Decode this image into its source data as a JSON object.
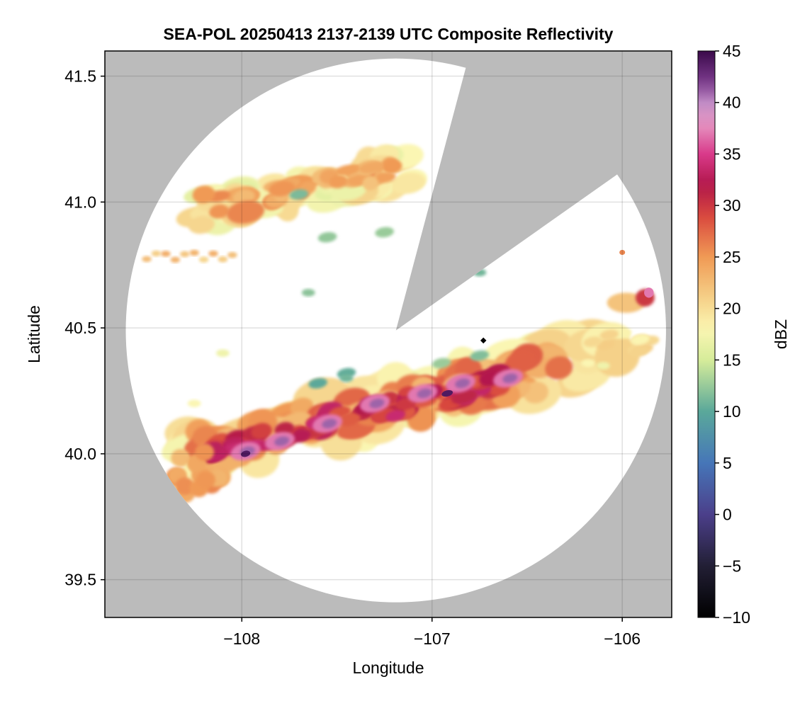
{
  "chart_data": {
    "type": "heatmap",
    "title": "SEA-POL 20250413 2137-2139 UTC Composite Reflectivity",
    "xlabel": "Longitude",
    "ylabel": "Latitude",
    "xlim": [
      -108.72,
      -105.74
    ],
    "ylim": [
      39.35,
      41.6
    ],
    "xticks": [
      -108,
      -107,
      -106
    ],
    "xtick_labels": [
      "−108",
      "−107",
      "−106"
    ],
    "yticks": [
      39.5,
      40.0,
      40.5,
      41.0,
      41.5
    ],
    "ytick_labels": [
      "39.5",
      "40.0",
      "40.5",
      "41.0",
      "41.5"
    ],
    "grid": true,
    "background_color": "#bbbbbb",
    "colorbar": {
      "label": "dBZ",
      "range": [
        -10,
        45
      ],
      "ticks": [
        -10,
        -5,
        0,
        5,
        10,
        15,
        20,
        25,
        30,
        35,
        40,
        45
      ],
      "tick_labels": [
        "−10",
        "−5",
        "0",
        "5",
        "10",
        "15",
        "20",
        "25",
        "30",
        "35",
        "40",
        "45"
      ],
      "colormap": "spectral-magenta",
      "color_stops": [
        [
          -10,
          "#000000"
        ],
        [
          -5,
          "#221f35"
        ],
        [
          0,
          "#4b3f8a"
        ],
        [
          5,
          "#4676b8"
        ],
        [
          10,
          "#5aa89a"
        ],
        [
          15,
          "#d6ec9a"
        ],
        [
          18,
          "#fbf6b3"
        ],
        [
          21,
          "#f5d088"
        ],
        [
          25,
          "#f09a55"
        ],
        [
          29,
          "#d9483e"
        ],
        [
          32,
          "#b0164a"
        ],
        [
          35,
          "#d93a8a"
        ],
        [
          38,
          "#e697c3"
        ],
        [
          40,
          "#c08bc5"
        ],
        [
          42,
          "#7a3a8c"
        ],
        [
          45,
          "#3b0a4a"
        ]
      ]
    },
    "radar": {
      "center_lon": -107.19,
      "center_lat": 40.49,
      "range_deg_lon": 1.42,
      "range_deg_lat": 1.08,
      "blocked_sectors": [
        {
          "az_start_deg": 15,
          "az_end_deg": 55
        }
      ]
    },
    "echo_regions": [
      {
        "name": "northern-band",
        "lon": [
          -108.55,
          -107.1
        ],
        "lat": [
          40.75,
          41.3
        ],
        "max_dbz": 27
      },
      {
        "name": "main-band",
        "lon": [
          -108.4,
          -105.85
        ],
        "lat": [
          39.8,
          40.45
        ],
        "max_dbz": 44
      },
      {
        "name": "east-cell",
        "lon": [
          -106.1,
          -105.8
        ],
        "lat": [
          40.55,
          40.68
        ],
        "max_dbz": 33
      }
    ]
  }
}
